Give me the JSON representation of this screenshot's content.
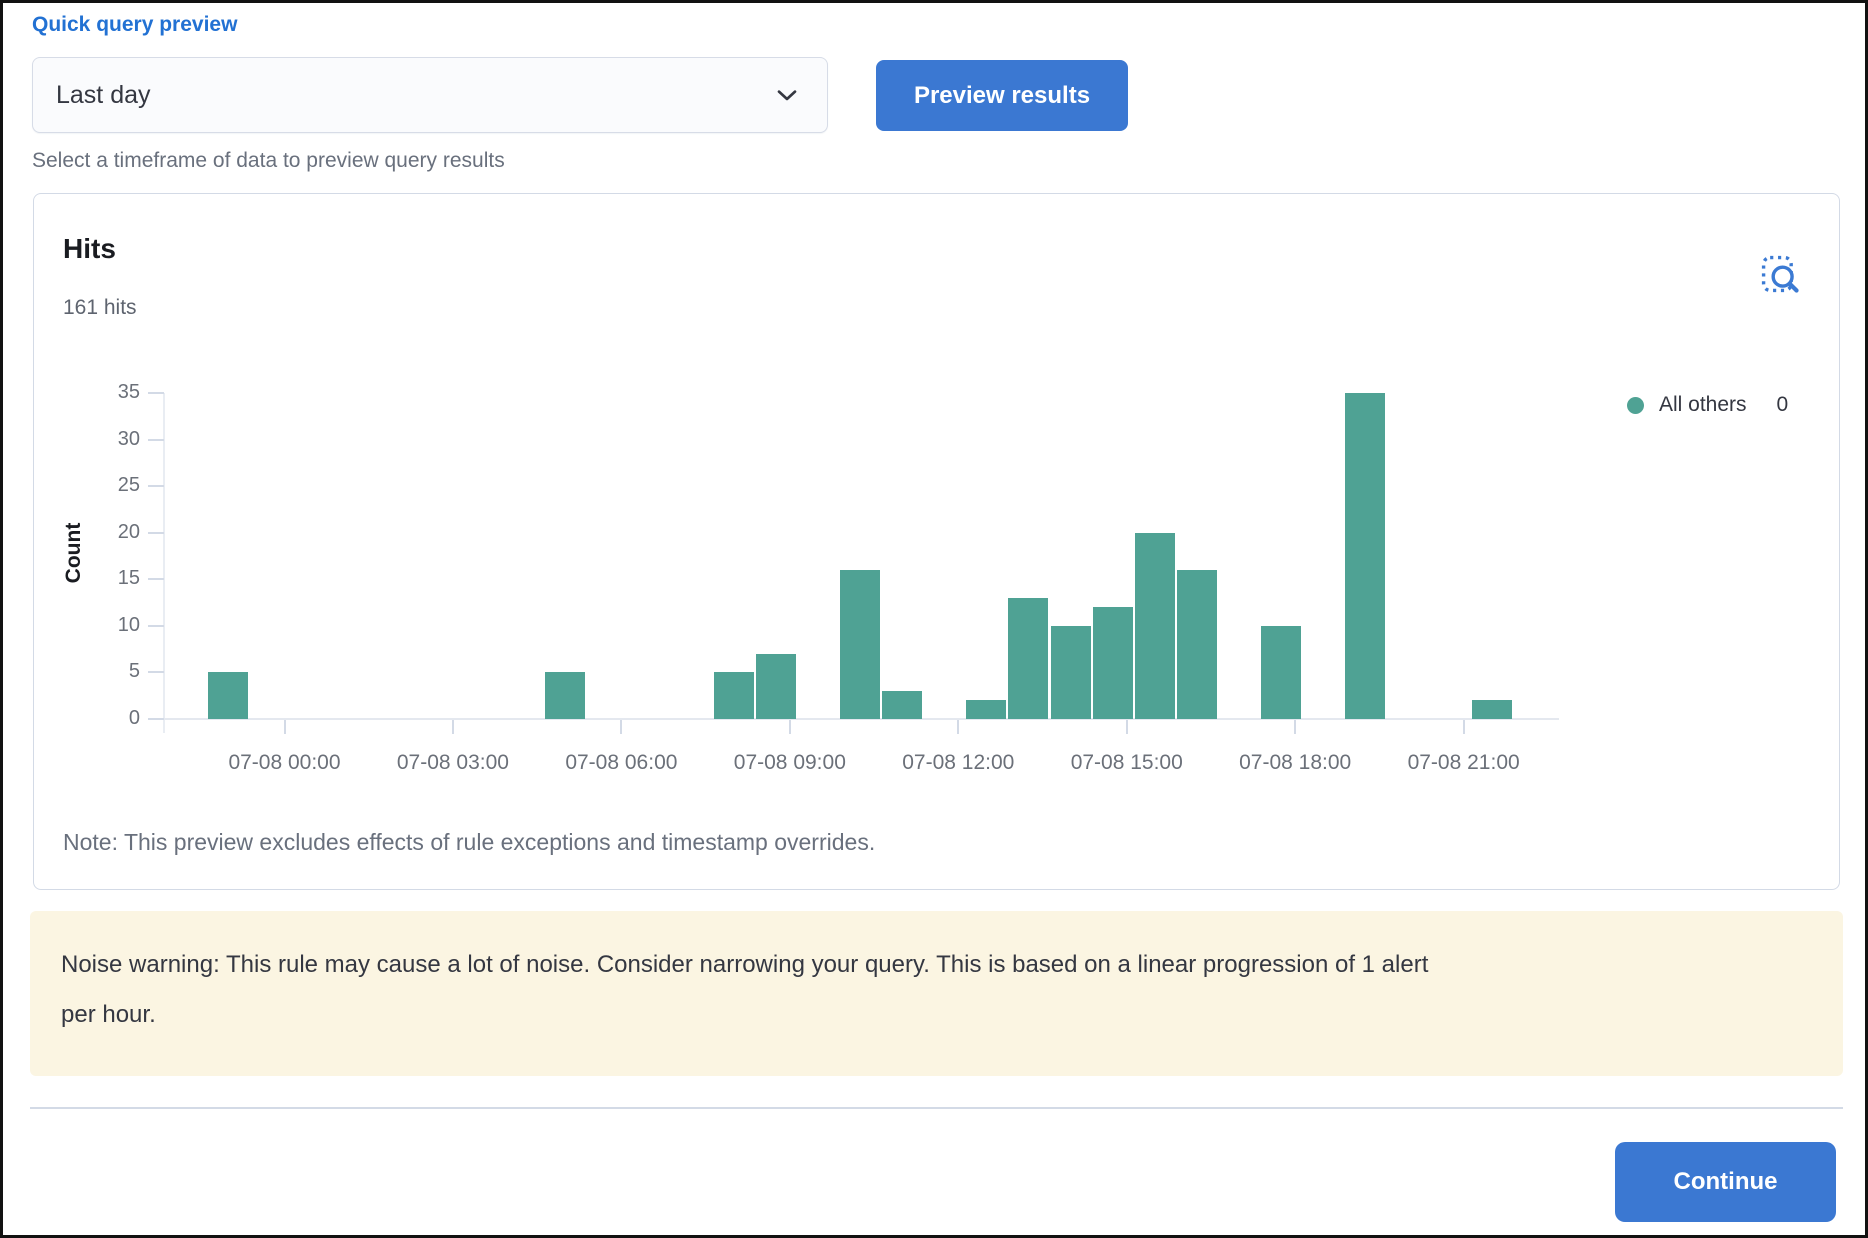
{
  "header": {
    "section_label": "Quick query preview",
    "timeframe_select": {
      "value": "Last day"
    },
    "preview_button_label": "Preview results",
    "helper_text": "Select a timeframe of data to preview query results"
  },
  "panel": {
    "title": "Hits",
    "subtitle": "161 hits",
    "note": "Note: This preview excludes effects of rule exceptions and timestamp overrides."
  },
  "chart_data": {
    "type": "bar",
    "title": "Hits",
    "total_hits": 161,
    "xlabel": "",
    "ylabel": "Count",
    "ylim": [
      0,
      35
    ],
    "grid": false,
    "legend_position": "right",
    "legend": [
      {
        "name": "All others",
        "value": 0
      }
    ],
    "series_color": "#4FA294",
    "y_ticks": [
      0,
      5,
      10,
      15,
      20,
      25,
      30,
      35
    ],
    "x_ticks": [
      {
        "label": "07-08 00:00",
        "offset_hours": 0
      },
      {
        "label": "07-08 03:00",
        "offset_hours": 3
      },
      {
        "label": "07-08 06:00",
        "offset_hours": 6
      },
      {
        "label": "07-08 09:00",
        "offset_hours": 9
      },
      {
        "label": "07-08 12:00",
        "offset_hours": 12
      },
      {
        "label": "07-08 15:00",
        "offset_hours": 15
      },
      {
        "label": "07-08 18:00",
        "offset_hours": 18
      },
      {
        "label": "07-08 21:00",
        "offset_hours": 21
      }
    ],
    "points": [
      {
        "time": "07-07 23:00",
        "offset_hours": -1,
        "count": 5
      },
      {
        "time": "07-08 05:00",
        "offset_hours": 5,
        "count": 5
      },
      {
        "time": "07-08 08:00",
        "offset_hours": 8,
        "count": 5
      },
      {
        "time": "07-08 08:45",
        "offset_hours": 8.75,
        "count": 7
      },
      {
        "time": "07-08 10:15",
        "offset_hours": 10.25,
        "count": 16
      },
      {
        "time": "07-08 11:00",
        "offset_hours": 11,
        "count": 3
      },
      {
        "time": "07-08 12:30",
        "offset_hours": 12.5,
        "count": 2
      },
      {
        "time": "07-08 13:15",
        "offset_hours": 13.25,
        "count": 13
      },
      {
        "time": "07-08 14:00",
        "offset_hours": 14,
        "count": 10
      },
      {
        "time": "07-08 14:45",
        "offset_hours": 14.75,
        "count": 12
      },
      {
        "time": "07-08 15:30",
        "offset_hours": 15.5,
        "count": 20
      },
      {
        "time": "07-08 16:15",
        "offset_hours": 16.25,
        "count": 16
      },
      {
        "time": "07-08 17:45",
        "offset_hours": 17.75,
        "count": 10
      },
      {
        "time": "07-08 19:15",
        "offset_hours": 19.25,
        "count": 35
      },
      {
        "time": "07-08 21:30",
        "offset_hours": 21.5,
        "count": 2
      }
    ]
  },
  "warning": {
    "text": "Noise warning: This rule may cause a lot of noise. Consider narrowing your query. This is based on a linear progression of 1 alert per hour."
  },
  "footer": {
    "continue_label": "Continue"
  },
  "colors": {
    "primary_blue": "#3B78D2",
    "link_blue": "#2271D3",
    "bar_teal": "#4FA294",
    "warning_bg": "#FBF5E2",
    "panel_border": "#D3DAE6",
    "text_dark": "#343741",
    "text_subdued": "#69707D"
  }
}
